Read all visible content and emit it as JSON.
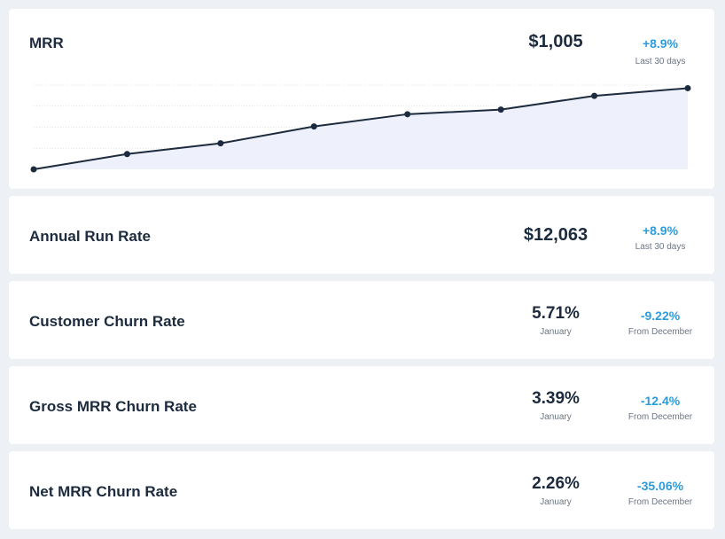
{
  "colors": {
    "background": "#edf0f4",
    "card": "#ffffff",
    "text": "#1d2b3e",
    "accent": "#2d9cdb",
    "line": "#1d2b3e",
    "area_fill": "#eef0fb",
    "grid": "#d3d7dd"
  },
  "mrr": {
    "title": "MRR",
    "value": "$1,005",
    "change": "+8.9%",
    "change_period": "Last 30 days"
  },
  "chart_data": {
    "type": "area",
    "values": [
      0,
      10,
      17,
      28,
      36,
      39,
      48,
      53
    ],
    "ylim": [
      0,
      55
    ],
    "grid": true,
    "grid_style": "dotted horizontal"
  },
  "cards": [
    {
      "title": "Annual Run Rate",
      "value": "$12,063",
      "value_sub": "",
      "change": "+8.9%",
      "change_sub": "Last 30 days"
    },
    {
      "title": "Customer Churn Rate",
      "value": "5.71%",
      "value_sub": "January",
      "change": "-9.22%",
      "change_sub": "From December"
    },
    {
      "title": "Gross MRR Churn Rate",
      "value": "3.39%",
      "value_sub": "January",
      "change": "-12.4%",
      "change_sub": "From December"
    },
    {
      "title": "Net MRR Churn Rate",
      "value": "2.26%",
      "value_sub": "January",
      "change": "-35.06%",
      "change_sub": "From December"
    }
  ]
}
